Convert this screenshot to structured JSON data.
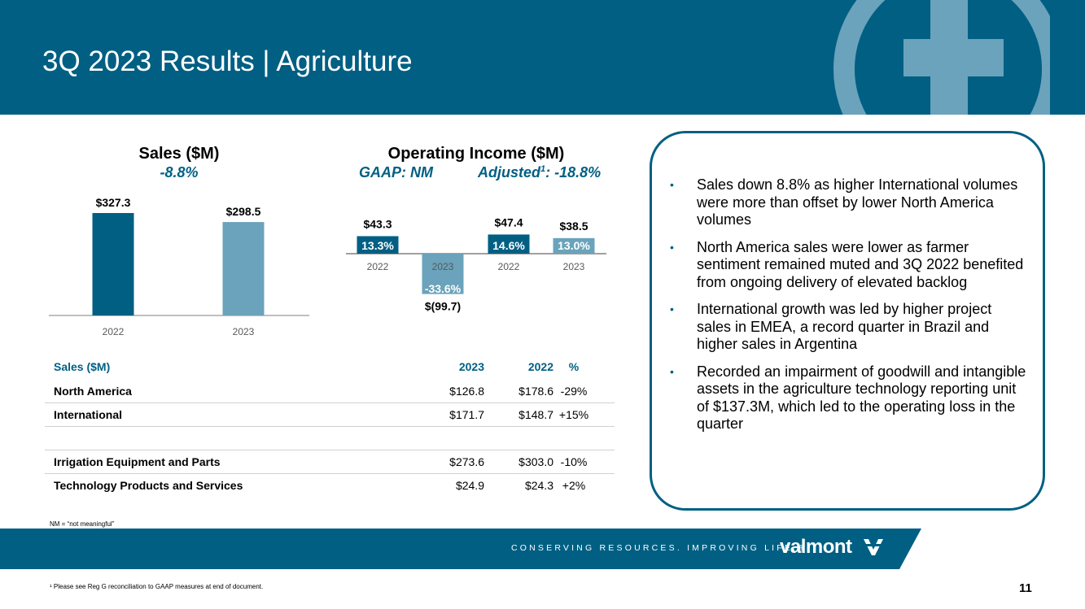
{
  "slide": {
    "title": "3Q 2023 Results | Agriculture",
    "page_number": "11",
    "note": "NM = “not meaningful”",
    "footnote": "¹ Please see Reg G reconciliation to GAAP measures at end of document.",
    "tagline": "CONSERVING RESOURCES. IMPROVING LIFE.®",
    "brand": "valmont",
    "colors": {
      "primary": "#005f83",
      "light": "#6aa3bb",
      "background": "#ffffff"
    }
  },
  "chart_data": [
    {
      "type": "bar",
      "title": "Sales ($M)",
      "subtitle": "-8.8%",
      "categories": [
        "2022",
        "2023"
      ],
      "values": [
        327.3,
        298.5
      ],
      "data_labels": [
        "$327.3",
        "$298.5"
      ],
      "ylim": [
        0,
        327.3
      ],
      "grid": false,
      "colors": [
        "#005f83",
        "#6aa3bb"
      ]
    },
    {
      "type": "bar",
      "title": "Operating Income ($M)",
      "subtitle_gaap": "GAAP: NM",
      "subtitle_adjusted_prefix": "Adjusted",
      "subtitle_adjusted_sup": "1",
      "subtitle_adjusted_suffix": ": -18.8%",
      "categories": [
        "2022",
        "2023",
        "2022",
        "2023"
      ],
      "values": [
        43.3,
        -99.7,
        47.4,
        38.5
      ],
      "data_labels": [
        "$43.3",
        "$(99.7)",
        "$47.4",
        "$38.5"
      ],
      "margins": [
        "13.3%",
        "-33.6%",
        "14.6%",
        "13.0%"
      ],
      "groups": [
        "GAAP",
        "GAAP",
        "Adjusted",
        "Adjusted"
      ],
      "ylim": [
        -99.7,
        47.4
      ],
      "grid": false,
      "colors": [
        "#005f83",
        "#6aa3bb",
        "#005f83",
        "#6aa3bb"
      ]
    }
  ],
  "table": {
    "headers": [
      "Sales ($M)",
      "2023",
      "2022",
      "%"
    ],
    "rows": [
      [
        "North America",
        "$126.8",
        "$178.6",
        "-29%"
      ],
      [
        "International",
        "$171.7",
        "$148.7",
        "+15%"
      ],
      [
        "",
        "",
        "",
        ""
      ],
      [
        "Irrigation Equipment and Parts",
        "$273.6",
        "$303.0",
        "-10%"
      ],
      [
        "Technology Products and Services",
        "$24.9",
        "$24.3",
        "+2%"
      ]
    ]
  },
  "bullets": [
    "Sales down 8.8% as higher International volumes were more than offset by lower North America volumes",
    "North America sales were lower as farmer sentiment remained muted and 3Q 2022 benefited from ongoing delivery of elevated backlog",
    "International growth was led by higher project sales in EMEA, a record quarter in Brazil and higher sales in Argentina",
    "Recorded an impairment of goodwill and intangible assets in the agriculture technology reporting unit of $137.3M, which led to the operating loss in the quarter"
  ]
}
